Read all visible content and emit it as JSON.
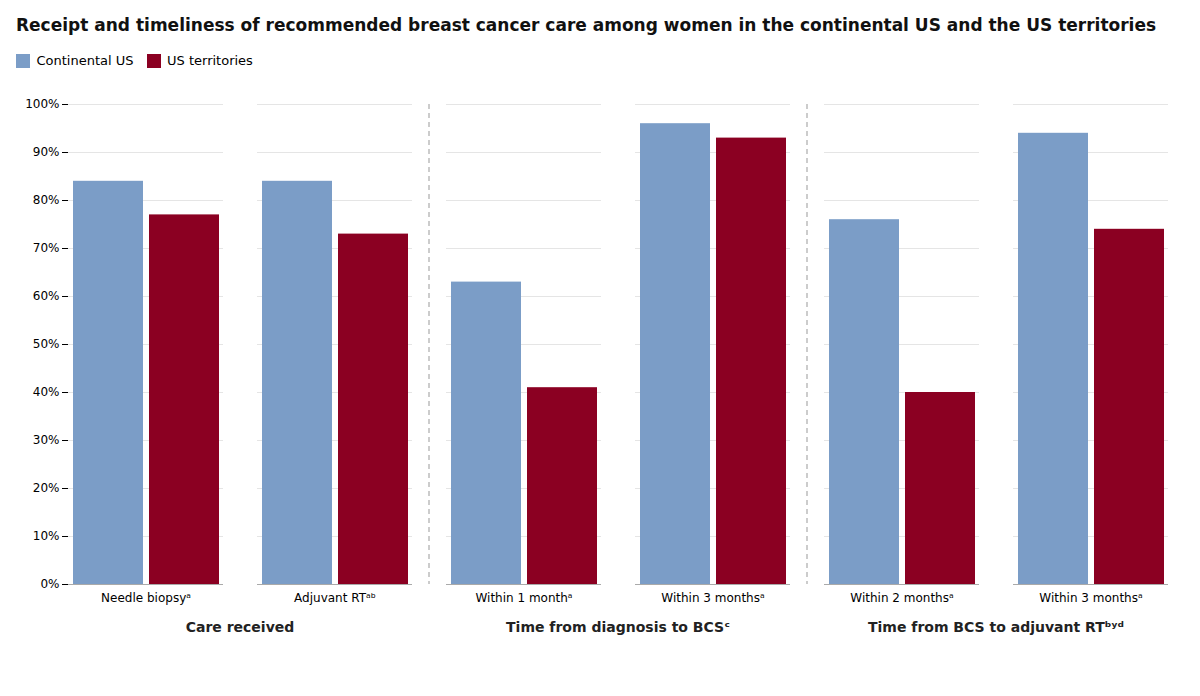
{
  "chart_data": {
    "type": "bar",
    "title": "Receipt and timeliness of recommended breast cancer care among women in the continental US and the US territories",
    "categories": [
      "Needle biopsyᵃ",
      "Adjuvant RTᵃᵇ",
      "Within 1 monthᵃ",
      "Within 3 monthsᵃ",
      "Within 2 monthsᵃ",
      "Within 3 monthsᵃ"
    ],
    "group_labels": [
      "Care received",
      "Time from diagnosis to BCSᶜ",
      "Time from BCS to adjuvant RTᵇʸᵈ"
    ],
    "series": [
      {
        "name": "Continental US",
        "color": "#7B9DC7",
        "values": [
          84,
          84,
          63,
          96,
          76,
          94
        ]
      },
      {
        "name": "US territories",
        "color": "#8B0022",
        "values": [
          77,
          73,
          41,
          93,
          40,
          74
        ]
      }
    ],
    "ylim": [
      0,
      100
    ],
    "yticks": [
      {
        "value": 0,
        "label": "0%"
      },
      {
        "value": 10,
        "label": "10%"
      },
      {
        "value": 20,
        "label": "20%"
      },
      {
        "value": 30,
        "label": "30%"
      },
      {
        "value": 40,
        "label": "40%"
      },
      {
        "value": 50,
        "label": "50%"
      },
      {
        "value": 60,
        "label": "60%"
      },
      {
        "value": 70,
        "label": "70%"
      },
      {
        "value": 80,
        "label": "80%"
      },
      {
        "value": 90,
        "label": "90%"
      },
      {
        "value": 100,
        "label": "100%"
      }
    ],
    "grid": true,
    "legend": "top"
  }
}
